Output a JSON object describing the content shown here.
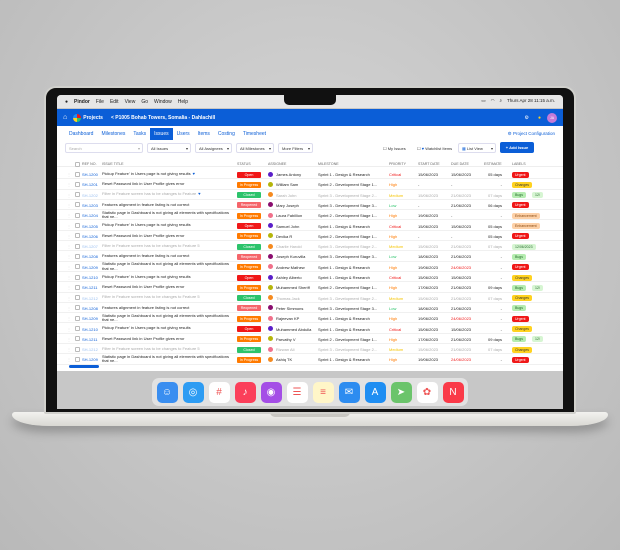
{
  "menubar": {
    "app": "Pindor",
    "items": [
      "File",
      "Edit",
      "View",
      "Go",
      "Window",
      "Help"
    ],
    "clock": "Thurs Apr 28 11:15 a.m."
  },
  "header": {
    "logo": "Projects",
    "breadcrumb": "< P1005 Bohab Towers, Somalia - Dahlachill",
    "avatar": "JA"
  },
  "tabs": [
    "Dashboard",
    "Milestones",
    "Tasks",
    "Issues",
    "Users",
    "Items",
    "Costing",
    "Timesheet"
  ],
  "active_tab": "Issues",
  "project_config": "Project Configuration",
  "filters": {
    "search_placeholder": "Search",
    "issues": "All Issues",
    "assignees": "All Assignees",
    "milestones": "All Milestones",
    "more": "More Filters",
    "my_issues": "My Issues",
    "watchlist": "Watchlist Items",
    "view": "List View",
    "add": "+ Add Issue"
  },
  "columns": [
    "REF NO.",
    "ISSUE TITLE",
    "STATUS",
    "ASSIGNEE",
    "MILESTONE",
    "PRIORITY",
    "START DATE",
    "DUE DATE",
    "ESTIMATE",
    "LABELS"
  ],
  "colors": {
    "Open": "#f01818",
    "In Progress": "#ff7a00",
    "Closed": "#2cc36b",
    "Reopened": "#f5656a",
    "Critical": "#f01818",
    "High": "#ff7a00",
    "Medium": "#f5c400",
    "Low": "#2cc36b",
    "accent": "#0b5ed7"
  },
  "rows": [
    {
      "ref": "SH-1200",
      "title": "Pickup Feature' in Users page is not giving results",
      "flag": true,
      "status": "Open",
      "assignee": "James Antony",
      "av": "#5a1fc9",
      "milestone": "Sprint 1 - Design & Research",
      "priority": "Critical",
      "start": "15/06/2023",
      "due": "15/06/2023",
      "est": "05 days",
      "labels": [
        "Urgent"
      ]
    },
    {
      "ref": "SH-1201",
      "title": "Reset Password link in User Profile gives error",
      "status": "In Progress",
      "assignee": "William Sam",
      "av": "#b5b50a",
      "milestone": "Sprint 2 - Development Stage 1...",
      "priority": "High",
      "start": "-",
      "due": "-",
      "est": "-",
      "labels": [
        "Changes"
      ]
    },
    {
      "ref": "SH-1202",
      "title": "Filter in Feature screen has to be changes to Feature",
      "flag": true,
      "faded": true,
      "status": "Closed",
      "assignee": "Sarah John",
      "av": "#f58a1f",
      "milestone": "Sprint 3 - Development Stage 2...",
      "priority": "Medium",
      "start": "15/06/2023",
      "due": "21/06/2023",
      "est": "07 days",
      "labels": [
        "Bugs",
        "12/"
      ]
    },
    {
      "ref": "SH-1203",
      "title": "Features alignment in feature listing is not correct",
      "status": "Reopened",
      "assignee": "Mary Joseph",
      "av": "#8a0d6e",
      "milestone": "Sprint 3 - Development Stage 3...",
      "priority": "Low",
      "start": "-",
      "due": "21/06/2023",
      "est": "06 days",
      "labels": [
        "Urgent"
      ]
    },
    {
      "ref": "SH-1204",
      "title": "Statistic page in Dashboard is not giving all elements with specifications that ne...",
      "status": "In Progress",
      "assignee": "Laura Fabillion",
      "av": "#f0708a",
      "milestone": "Sprint 2 - Development Stage 1...",
      "priority": "High",
      "start": "19/06/2023",
      "due": "-",
      "est": "-",
      "labels": [
        "Enhancement"
      ]
    },
    {
      "ref": "SH-1205",
      "title": "Pickup Feature' in Users page is not giving results",
      "status": "Open",
      "assignee": "Samuel John",
      "av": "#5a1fc9",
      "milestone": "Sprint 1 - Design & Research",
      "priority": "Critical",
      "start": "15/06/2023",
      "due": "15/06/2023",
      "est": "05 days",
      "labels": [
        "Enhancement"
      ]
    },
    {
      "ref": "SH-1206",
      "title": "Reset Password link in User Profile gives error",
      "status": "In Progress",
      "assignee": "Devika R",
      "av": "#b5b50a",
      "milestone": "Sprint 2 - Development Stage 1...",
      "priority": "High",
      "start": "-",
      "due": "-",
      "est": "05 days",
      "labels": [
        "Urgent"
      ]
    },
    {
      "ref": "SH-1207",
      "title": "Filter in Feature screen has to be changes to Feature 5",
      "faded": true,
      "status": "Closed",
      "assignee": "Charlie Harold",
      "av": "#f58a1f",
      "milestone": "Sprint 3 - Development Stage 2...",
      "priority": "Medium",
      "start": "15/06/2023",
      "due": "21/06/2023",
      "est": "07 days",
      "labels": [
        "12/06/2023"
      ]
    },
    {
      "ref": "SH-1208",
      "title": "Features alignment in feature listing is not correct",
      "status": "Reopened",
      "assignee": "Joseph Kuruvilla",
      "av": "#8a0d6e",
      "milestone": "Sprint 3 - Development Stage 3...",
      "priority": "Low",
      "start": "18/06/2023",
      "due": "21/06/2023",
      "est": "-",
      "labels": [
        "Bugs"
      ]
    },
    {
      "ref": "SH-1209",
      "title": "Statistic page in Dashboard is not giving all elements with specifications that ne...",
      "status": "In Progress",
      "assignee": "Andrew Mathew",
      "av": "#f0708a",
      "milestone": "Sprint 1 - Design & Research",
      "priority": "High",
      "start": "19/06/2023",
      "due": "24/06/2023",
      "overdue": true,
      "est": "-",
      "labels": [
        "Urgent"
      ]
    },
    {
      "ref": "SH-1210",
      "title": "Pickup Feature' in Users page is not giving results",
      "status": "Open",
      "assignee": "Ashley Alberto",
      "av": "#5a1fc9",
      "milestone": "Sprint 1 - Design & Research",
      "priority": "Critical",
      "start": "15/06/2023",
      "due": "15/06/2023",
      "est": "-",
      "labels": [
        "Changes"
      ]
    },
    {
      "ref": "SH-1211",
      "title": "Reset Password link in User Profile gives error",
      "status": "In Progress",
      "assignee": "Muhammed Sheriff",
      "av": "#b5b50a",
      "milestone": "Sprint 2 - Development Stage 1...",
      "priority": "High",
      "start": "17/06/2023",
      "due": "21/06/2023",
      "est": "09 days",
      "labels": [
        "Bugs",
        "12/"
      ]
    },
    {
      "ref": "SH-1212",
      "title": "Filter in Feature screen has to be changes to Feature 5",
      "faded": true,
      "status": "Closed",
      "assignee": "Thomas Jack",
      "av": "#f58a1f",
      "milestone": "Sprint 3 - Development Stage 2...",
      "priority": "Medium",
      "start": "15/06/2023",
      "due": "21/06/2023",
      "est": "07 days",
      "labels": [
        "Changes"
      ]
    },
    {
      "ref": "SH-1208",
      "title": "Features alignment in feature listing is not correct",
      "status": "Reopened",
      "assignee": "Peter Simmons",
      "av": "#8a0d6e",
      "milestone": "Sprint 3 - Development Stage 3...",
      "priority": "Low",
      "start": "18/06/2023",
      "due": "21/06/2023",
      "est": "-",
      "labels": [
        "Bugs"
      ]
    },
    {
      "ref": "SH-1209",
      "title": "Statistic page in Dashboard is not giving all elements with specifications that ne...",
      "status": "In Progress",
      "assignee": "Rajeevan KP",
      "av": "#f0708a",
      "milestone": "Sprint 1 - Design & Research",
      "priority": "High",
      "start": "19/06/2023",
      "due": "24/06/2023",
      "overdue": true,
      "est": "-",
      "labels": [
        "Urgent"
      ]
    },
    {
      "ref": "SH-1210",
      "title": "Pickup Feature' in Users page is not giving results",
      "status": "Open",
      "assignee": "Muhammed Abdulla",
      "av": "#5a1fc9",
      "milestone": "Sprint 1 - Design & Research",
      "priority": "Critical",
      "start": "15/06/2023",
      "due": "15/06/2023",
      "est": "-",
      "labels": [
        "Changes"
      ]
    },
    {
      "ref": "SH-1211",
      "title": "Reset Password link in User Profile gives error",
      "status": "In Progress",
      "assignee": "Parvathy V",
      "av": "#b5b50a",
      "milestone": "Sprint 2 - Development Stage 1...",
      "priority": "High",
      "start": "17/06/2023",
      "due": "21/06/2023",
      "est": "09 days",
      "labels": [
        "Bugs",
        "12/"
      ]
    },
    {
      "ref": "SH-1212",
      "title": "Filter in Feature screen has to be changes to Feature 5",
      "faded": true,
      "status": "Closed",
      "assignee": "Rizwan Ali",
      "av": "#f0708a",
      "milestone": "Sprint 3 - Development Stage 2...",
      "priority": "Medium",
      "start": "15/06/2023",
      "due": "21/06/2023",
      "est": "07 days",
      "labels": [
        "Changes"
      ]
    },
    {
      "ref": "SH-1209",
      "title": "Statistic page in Dashboard is not giving all elements with specifications that ne...",
      "status": "In Progress",
      "assignee": "Ashiq TK",
      "av": "#f58a1f",
      "milestone": "Sprint 1 - Design & Research",
      "priority": "High",
      "start": "19/06/2023",
      "due": "24/06/2023",
      "overdue": true,
      "est": "-",
      "labels": [
        "Urgent"
      ]
    }
  ],
  "label_colors": {
    "Urgent": [
      "#f01818",
      "#fff"
    ],
    "Changes": [
      "#ffd21f",
      "#333"
    ],
    "Bugs": [
      "#b5ecb0",
      "#236b2a"
    ],
    "Enhancement": [
      "#fdd1a8",
      "#8a4a10"
    ],
    "12/06/2023": [
      "#d6f5d2",
      "#236b2a"
    ],
    "12/": [
      "#d6f5d2",
      "#236b2a"
    ]
  },
  "dock": [
    {
      "icon": "finder-icon",
      "c": "#3a8ef0"
    },
    {
      "icon": "safari-icon",
      "c": "#2d9cf3"
    },
    {
      "icon": "slack-icon",
      "c": "#fff"
    },
    {
      "icon": "music-icon",
      "c": "#fb3f5a"
    },
    {
      "icon": "podcasts-icon",
      "c": "#a44ee6"
    },
    {
      "icon": "reminders-icon",
      "c": "#fff"
    },
    {
      "icon": "notes-icon",
      "c": "#fff6c8"
    },
    {
      "icon": "mail-icon",
      "c": "#2d8cf0"
    },
    {
      "icon": "appstore-icon",
      "c": "#1f8ef2"
    },
    {
      "icon": "maps-icon",
      "c": "#6bc46b"
    },
    {
      "icon": "photos-icon",
      "c": "#fff"
    },
    {
      "icon": "news-icon",
      "c": "#fa3a48"
    }
  ]
}
